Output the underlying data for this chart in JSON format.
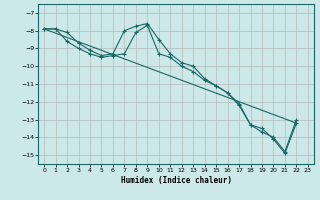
{
  "xlabel": "Humidex (Indice chaleur)",
  "background_color": "#cce8e8",
  "grid_color": "#b0b0b0",
  "line_color": "#1a6666",
  "xlim": [
    -0.5,
    23.5
  ],
  "ylim": [
    -15.5,
    -6.5
  ],
  "yticks": [
    -15,
    -14,
    -13,
    -12,
    -11,
    -10,
    -9,
    -8,
    -7
  ],
  "xticks": [
    0,
    1,
    2,
    3,
    4,
    5,
    6,
    7,
    8,
    9,
    10,
    11,
    12,
    13,
    14,
    15,
    16,
    17,
    18,
    19,
    20,
    21,
    22,
    23
  ],
  "line1_x": [
    0,
    1,
    2,
    3,
    4,
    5,
    6,
    7,
    8,
    9,
    10,
    11,
    12,
    13,
    14,
    15,
    16,
    17,
    18,
    19,
    20,
    21,
    22
  ],
  "line1_y": [
    -7.9,
    -7.9,
    -8.1,
    -8.7,
    -9.1,
    -9.4,
    -9.3,
    -8.0,
    -7.75,
    -7.6,
    -8.5,
    -9.3,
    -9.8,
    -10.0,
    -10.7,
    -11.1,
    -11.5,
    -12.1,
    -13.3,
    -13.7,
    -14.0,
    -14.8,
    -13.0
  ],
  "line2_x": [
    0,
    1,
    2,
    3,
    4,
    5,
    6,
    7,
    8,
    9,
    10,
    11,
    12,
    13,
    14,
    15,
    16,
    17,
    18,
    19,
    20,
    21,
    22
  ],
  "line2_y": [
    -7.9,
    -7.9,
    -8.6,
    -9.0,
    -9.3,
    -9.5,
    -9.4,
    -9.3,
    -8.1,
    -7.7,
    -9.3,
    -9.5,
    -10.0,
    -10.3,
    -10.8,
    -11.1,
    -11.5,
    -12.2,
    -13.3,
    -13.5,
    -14.1,
    -14.9,
    -13.2
  ],
  "line3_x": [
    0,
    22
  ],
  "line3_y": [
    -7.9,
    -13.2
  ]
}
